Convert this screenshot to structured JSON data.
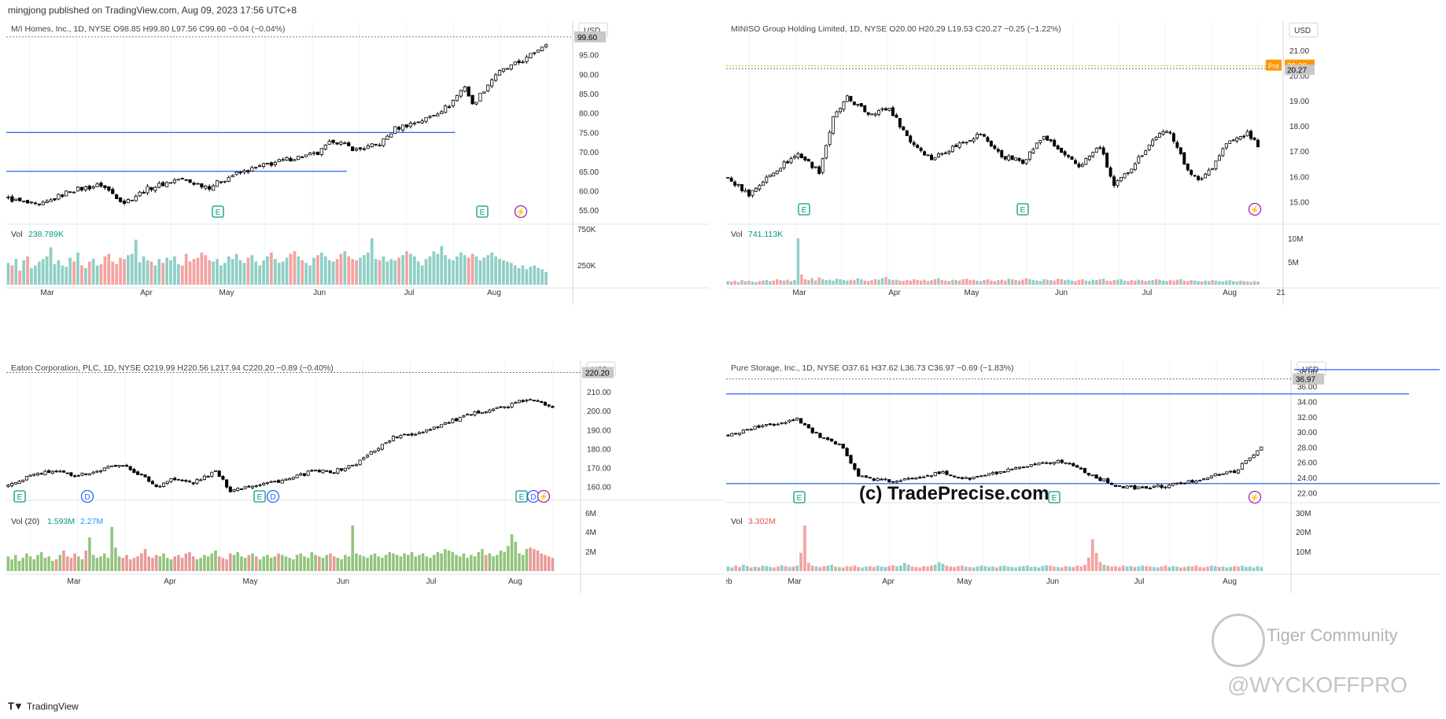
{
  "header": {
    "publisher": "mingjong published on TradingView.com, Aug 09, 2023 17:56 UTC+8"
  },
  "footer": {
    "brand": "TradingView"
  },
  "watermarks": {
    "tradeprecise": "(c) TradePrecise.com",
    "tiger": "Tiger Community",
    "handle": "@WYCKOFFPRO"
  },
  "colors": {
    "up": "#26a69a",
    "down": "#ef5350",
    "line": "#2962ff",
    "event_e": "#089981",
    "event_d": "#2962ff",
    "event_split": "#9c27b0",
    "premarket": "#ff9800"
  },
  "chart_data": [
    {
      "type": "candlestick",
      "title": "M/I Homes, Inc., 1D, NYSE",
      "ohlc_label": "O98.85 H99.80 L97.56 C99.60 −0.04 (−0.04%)",
      "currency": "USD",
      "x_labels": [
        "Mar",
        "Apr",
        "May",
        "Jun",
        "Jul",
        "Aug"
      ],
      "y_ticks": [
        "95.00",
        "90.00",
        "85.00",
        "80.00",
        "75.00",
        "70.00",
        "65.00",
        "60.00",
        "55.00"
      ],
      "ylim": [
        52,
        102
      ],
      "close_path": [
        [
          0,
          58
        ],
        [
          8,
          56
        ],
        [
          16,
          60
        ],
        [
          24,
          61.5
        ],
        [
          30,
          57
        ],
        [
          36,
          60.5
        ],
        [
          44,
          63
        ],
        [
          52,
          61
        ],
        [
          58,
          64
        ],
        [
          66,
          66.5
        ],
        [
          74,
          68.5
        ],
        [
          80,
          69.5
        ],
        [
          84,
          73
        ],
        [
          90,
          70.5
        ],
        [
          96,
          72
        ],
        [
          100,
          76
        ],
        [
          108,
          78.5
        ],
        [
          114,
          82
        ],
        [
          118,
          87
        ],
        [
          120,
          82
        ],
        [
          126,
          90
        ],
        [
          134,
          94
        ],
        [
          140,
          99
        ],
        [
          144,
          96
        ],
        [
          148,
          99.6
        ]
      ],
      "series_colors": {
        "up": "#26a69a",
        "down": "#ef5350"
      },
      "levels": [
        {
          "value": 75.0,
          "from": 0,
          "to": 116
        },
        {
          "value": 65.0,
          "from": 0,
          "to": 88
        }
      ],
      "last_price": "99.60",
      "events": [
        "E",
        "E",
        "⚡"
      ],
      "volume_label": "Vol",
      "volume_value": "238.789K",
      "volume_ticks": [
        "750K",
        "250K"
      ],
      "volume": [
        34,
        30,
        40,
        22,
        38,
        44,
        26,
        30,
        36,
        40,
        44,
        58,
        32,
        38,
        30,
        28,
        42,
        36,
        50,
        30,
        26,
        36,
        40,
        30,
        32,
        44,
        48,
        36,
        32,
        42,
        40,
        46,
        48,
        70,
        35,
        44,
        38,
        36,
        30,
        40,
        34,
        42,
        38,
        44,
        32,
        30,
        48,
        36,
        40,
        42,
        50,
        46,
        38,
        36,
        40,
        30,
        34,
        44,
        40,
        48,
        38,
        34,
        42,
        46,
        36,
        30,
        38,
        44,
        50,
        40,
        34,
        36,
        42,
        48,
        52,
        44,
        38,
        34,
        30,
        42,
        46,
        50,
        44,
        38,
        36,
        40,
        48,
        52,
        44,
        40,
        38,
        42,
        46,
        50,
        72,
        40,
        38,
        44,
        36,
        40,
        38,
        42,
        46,
        52,
        48,
        44,
        36,
        30,
        40,
        44,
        52,
        48,
        60,
        46,
        40,
        38,
        44,
        50,
        46,
        42,
        48,
        44,
        38,
        42,
        46,
        50,
        44,
        40,
        38,
        36,
        34,
        30,
        26,
        30,
        24,
        28,
        30,
        26,
        24,
        20
      ]
    },
    {
      "type": "candlestick",
      "title": "MINISO Group Holding Limited, 1D, NYSE",
      "ohlc_label": "O20.00 H20.29 L19.53 C20.27 −0.25 (−1.22%)",
      "currency": "USD",
      "x_labels": [
        "Mar",
        "Apr",
        "May",
        "Jun",
        "Jul",
        "Aug",
        "21"
      ],
      "y_ticks": [
        "21.00",
        "20.00",
        "19.00",
        "18.00",
        "17.00",
        "16.00",
        "15.00"
      ],
      "ylim": [
        14.2,
        21.9
      ],
      "close_path": [
        [
          0,
          15.9
        ],
        [
          6,
          15.3
        ],
        [
          14,
          16.3
        ],
        [
          20,
          16.9
        ],
        [
          26,
          16.2
        ],
        [
          30,
          18.3
        ],
        [
          34,
          19.1
        ],
        [
          40,
          18.5
        ],
        [
          46,
          18.7
        ],
        [
          52,
          17.4
        ],
        [
          58,
          16.7
        ],
        [
          66,
          17.3
        ],
        [
          72,
          17.7
        ],
        [
          78,
          16.8
        ],
        [
          84,
          16.6
        ],
        [
          90,
          17.6
        ],
        [
          96,
          16.8
        ],
        [
          100,
          16.4
        ],
        [
          106,
          17.2
        ],
        [
          110,
          15.6
        ],
        [
          114,
          16.2
        ],
        [
          118,
          16.9
        ],
        [
          122,
          17.6
        ],
        [
          126,
          17.8
        ],
        [
          130,
          16.5
        ],
        [
          134,
          15.8
        ],
        [
          138,
          16.4
        ],
        [
          142,
          17.3
        ],
        [
          148,
          17.7
        ],
        [
          154,
          16.8
        ],
        [
          158,
          17.9
        ],
        [
          162,
          18.9
        ],
        [
          166,
          18.1
        ],
        [
          170,
          20.6
        ],
        [
          174,
          21.0
        ],
        [
          176,
          20.7
        ],
        [
          178,
          20.3
        ],
        [
          180,
          20.27
        ]
      ],
      "series_colors": {
        "up": "#26a69a",
        "down": "#ef5350"
      },
      "price_labels": [
        {
          "label": "Pre",
          "value": "20.38"
        },
        {
          "label": "",
          "value": "20.27"
        }
      ],
      "events": [
        "E",
        "E",
        "⚡"
      ],
      "volume_label": "Vol",
      "volume_value": "741.113K",
      "volume_ticks": [
        "10M",
        "5M"
      ],
      "volume": [
        8,
        7,
        9,
        6,
        10,
        8,
        9,
        7,
        6,
        8,
        9,
        10,
        8,
        9,
        12,
        10,
        9,
        11,
        8,
        10,
        100,
        22,
        12,
        10,
        14,
        9,
        16,
        12,
        10,
        11,
        9,
        13,
        12,
        10,
        9,
        11,
        10,
        14,
        12,
        9,
        8,
        10,
        12,
        11,
        14,
        17,
        12,
        10,
        11,
        9,
        8,
        10,
        9,
        12,
        10,
        9,
        11,
        8,
        10,
        12,
        14,
        10,
        9,
        8,
        11,
        10,
        9,
        12,
        13,
        10,
        11,
        9,
        8,
        10,
        12,
        9,
        8,
        10,
        11,
        9,
        13,
        12,
        10,
        9,
        11,
        14,
        12,
        10,
        9,
        8,
        12,
        11,
        10,
        9,
        13,
        12,
        10,
        11,
        9,
        8,
        10,
        12,
        9,
        8,
        11,
        10,
        12,
        13,
        9,
        8,
        10,
        11,
        12,
        9,
        8,
        10,
        9,
        11,
        10,
        8,
        9,
        10,
        12,
        11,
        9,
        8,
        10,
        9,
        11,
        12,
        9,
        8,
        10,
        9,
        8,
        7,
        9,
        8,
        10,
        9,
        8,
        7,
        9,
        10,
        8,
        7,
        9,
        8,
        7,
        6,
        8,
        7
      ]
    },
    {
      "type": "candlestick",
      "title": "Eaton Corporation, PLC, 1D, NYSE",
      "ohlc_label": "O219.99 H220.56 L217.94 C220.20 −0.89 (−0.40%)",
      "currency": "USD",
      "x_labels": [
        "Mar",
        "Apr",
        "May",
        "Jun",
        "Jul",
        "Aug"
      ],
      "y_ticks": [
        "210.00",
        "200.00",
        "190.00",
        "180.00",
        "170.00",
        "160.00"
      ],
      "ylim": [
        154,
        225
      ],
      "close_path": [
        [
          0,
          160
        ],
        [
          6,
          166
        ],
        [
          12,
          168
        ],
        [
          18,
          166
        ],
        [
          24,
          168
        ],
        [
          30,
          172
        ],
        [
          36,
          166
        ],
        [
          40,
          160
        ],
        [
          44,
          164
        ],
        [
          50,
          162
        ],
        [
          56,
          168
        ],
        [
          60,
          158
        ],
        [
          64,
          160
        ],
        [
          70,
          162
        ],
        [
          76,
          164
        ],
        [
          82,
          168
        ],
        [
          88,
          168
        ],
        [
          94,
          172
        ],
        [
          98,
          178
        ],
        [
          104,
          186
        ],
        [
          110,
          188
        ],
        [
          116,
          192
        ],
        [
          122,
          196
        ],
        [
          128,
          200
        ],
        [
          134,
          202
        ],
        [
          140,
          206
        ],
        [
          144,
          204
        ],
        [
          148,
          202
        ],
        [
          152,
          216
        ],
        [
          156,
          220.2
        ]
      ],
      "series_colors": {
        "up": "#ffffff",
        "down": "#000000"
      },
      "last_price": "220.20",
      "events": [
        "E",
        "D",
        "E",
        "D",
        "E",
        "D",
        "⚡"
      ],
      "volume_label": "Vol (20)",
      "volume_value": "1.593M",
      "volume_value2": "2.27M",
      "volume_ticks": [
        "6M",
        "4M",
        "2M"
      ],
      "volume": [
        20,
        16,
        22,
        14,
        18,
        24,
        20,
        16,
        22,
        26,
        18,
        20,
        14,
        16,
        22,
        28,
        20,
        18,
        24,
        20,
        16,
        28,
        46,
        22,
        18,
        20,
        24,
        18,
        60,
        32,
        20,
        18,
        22,
        16,
        18,
        20,
        24,
        30,
        20,
        18,
        22,
        20,
        24,
        18,
        16,
        20,
        22,
        18,
        24,
        26,
        20,
        16,
        18,
        22,
        20,
        24,
        28,
        20,
        18,
        16,
        24,
        22,
        26,
        20,
        18,
        22,
        24,
        20,
        16,
        20,
        22,
        18,
        20,
        24,
        22,
        20,
        18,
        16,
        22,
        24,
        20,
        18,
        26,
        22,
        20,
        18,
        22,
        24,
        20,
        18,
        16,
        22,
        20,
        62,
        24,
        22,
        20,
        18,
        22,
        24,
        20,
        18,
        22,
        26,
        24,
        22,
        20,
        24,
        22,
        26,
        20,
        22,
        24,
        20,
        18,
        22,
        26,
        24,
        30,
        28,
        26,
        22,
        20,
        24,
        18,
        22,
        20,
        26,
        30,
        22,
        24,
        20,
        22,
        28,
        26,
        34,
        50,
        40,
        24,
        22,
        30,
        32,
        30,
        28,
        24,
        22,
        20,
        18
      ]
    },
    {
      "type": "candlestick",
      "title": "Pure Storage, Inc., 1D, NYSE",
      "ohlc_label": "O37.61 H37.62 L36.73 C36.97 −0.69 (−1.83%)",
      "currency": "USD",
      "x_labels": [
        "eb",
        "Mar",
        "Apr",
        "May",
        "Jun",
        "Jul",
        "Aug"
      ],
      "y_ticks": [
        "38.00",
        "36.00",
        "34.00",
        "32.00",
        "30.00",
        "28.00",
        "26.00",
        "24.00",
        "22.00"
      ],
      "ylim": [
        21,
        38.6
      ],
      "close_path": [
        [
          0,
          29.5
        ],
        [
          6,
          30.5
        ],
        [
          12,
          31
        ],
        [
          18,
          31.8
        ],
        [
          22,
          30
        ],
        [
          26,
          28.8
        ],
        [
          30,
          28
        ],
        [
          34,
          24.2
        ],
        [
          38,
          23.8
        ],
        [
          44,
          23.4
        ],
        [
          50,
          24.2
        ],
        [
          56,
          24.6
        ],
        [
          62,
          23.8
        ],
        [
          68,
          24.4
        ],
        [
          74,
          25
        ],
        [
          80,
          25.6
        ],
        [
          86,
          26.2
        ],
        [
          90,
          25.6
        ],
        [
          96,
          24
        ],
        [
          102,
          22.8
        ],
        [
          108,
          22.6
        ],
        [
          114,
          22.9
        ],
        [
          120,
          23.4
        ],
        [
          126,
          24.2
        ],
        [
          132,
          24.8
        ],
        [
          136,
          26.5
        ],
        [
          140,
          28.6
        ],
        [
          144,
          33
        ],
        [
          148,
          34.4
        ],
        [
          152,
          36
        ],
        [
          156,
          37.4
        ],
        [
          160,
          36
        ],
        [
          166,
          35.6
        ],
        [
          172,
          37.2
        ],
        [
          178,
          38
        ],
        [
          186,
          37.6
        ],
        [
          190,
          37.2
        ],
        [
          194,
          36.97
        ]
      ],
      "series_colors": {
        "up": "#ffffff",
        "down": "#000000"
      },
      "levels": [
        {
          "value": 38.2,
          "from": 148,
          "to": 198
        },
        {
          "value": 35.0,
          "from": 0,
          "to": 178
        },
        {
          "value": 23.2,
          "from": 0,
          "to": 190
        }
      ],
      "last_price": "36.97",
      "events": [
        "E",
        "E",
        "⚡"
      ],
      "volume_label": "Vol",
      "volume_value": "3.302M",
      "volume_ticks": [
        "30M",
        "20M",
        "10M"
      ],
      "volume": [
        10,
        8,
        12,
        9,
        14,
        11,
        8,
        10,
        9,
        12,
        11,
        9,
        8,
        10,
        13,
        11,
        9,
        10,
        12,
        40,
        100,
        18,
        12,
        10,
        9,
        11,
        12,
        14,
        10,
        9,
        8,
        11,
        10,
        12,
        9,
        8,
        10,
        11,
        9,
        12,
        10,
        9,
        11,
        13,
        10,
        12,
        18,
        14,
        10,
        9,
        8,
        11,
        10,
        12,
        14,
        20,
        16,
        12,
        10,
        9,
        11,
        12,
        10,
        9,
        8,
        10,
        12,
        11,
        9,
        10,
        8,
        11,
        12,
        10,
        9,
        8,
        10,
        11,
        12,
        9,
        10,
        8,
        11,
        13,
        12,
        10,
        9,
        8,
        11,
        10,
        9,
        12,
        10,
        14,
        30,
        70,
        40,
        20,
        14,
        12,
        10,
        11,
        9,
        12,
        10,
        11,
        9,
        10,
        12,
        11,
        10,
        9,
        8,
        10,
        12,
        9,
        11,
        10,
        8,
        9,
        11,
        10,
        12,
        9,
        8,
        10,
        12,
        11,
        9,
        10,
        8,
        9,
        11,
        10,
        12,
        9,
        10,
        8,
        11,
        9
      ]
    }
  ]
}
